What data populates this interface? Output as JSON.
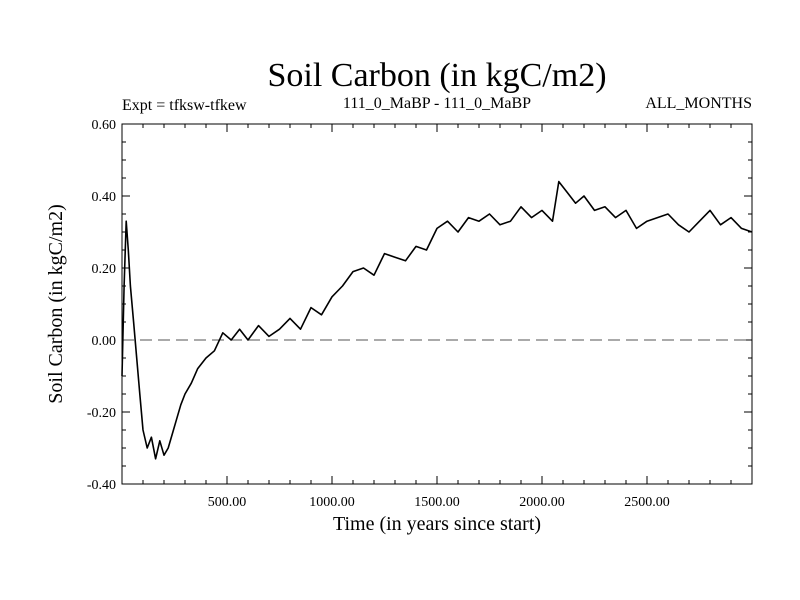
{
  "chart_data": {
    "type": "line",
    "title": "Soil Carbon (in kgC/m2)",
    "header_left": "Expt = tfksw-tfkew",
    "header_center": "111_0_MaBP - 111_0_MaBP",
    "header_right": "ALL_MONTHS",
    "xlabel": "Time (in years since start)",
    "ylabel": "Soil Carbon (in kgC/m2)",
    "xlim": [
      0,
      3000
    ],
    "ylim": [
      -0.4,
      0.6
    ],
    "x_ticks": [
      {
        "value": 500,
        "label": "500.00"
      },
      {
        "value": 1000,
        "label": "1000.00"
      },
      {
        "value": 1500,
        "label": "1500.00"
      },
      {
        "value": 2000,
        "label": "2000.00"
      },
      {
        "value": 2500,
        "label": "2500.00"
      }
    ],
    "y_ticks": [
      {
        "value": -0.4,
        "label": "-0.40"
      },
      {
        "value": -0.2,
        "label": "-0.20"
      },
      {
        "value": 0.0,
        "label": "0.00"
      },
      {
        "value": 0.2,
        "label": "0.20"
      },
      {
        "value": 0.4,
        "label": "0.40"
      },
      {
        "value": 0.6,
        "label": "0.60"
      }
    ],
    "reference_line": {
      "y": 0.0,
      "style": "dashed"
    },
    "series": [
      {
        "name": "soil_carbon",
        "x": [
          0,
          10,
          20,
          30,
          40,
          55,
          70,
          85,
          100,
          120,
          140,
          160,
          180,
          200,
          220,
          240,
          260,
          280,
          300,
          330,
          360,
          400,
          440,
          480,
          520,
          560,
          600,
          650,
          700,
          750,
          800,
          850,
          900,
          950,
          1000,
          1050,
          1100,
          1150,
          1200,
          1250,
          1300,
          1350,
          1400,
          1450,
          1500,
          1550,
          1600,
          1650,
          1700,
          1750,
          1800,
          1850,
          1900,
          1950,
          2000,
          2050,
          2080,
          2120,
          2160,
          2200,
          2250,
          2300,
          2350,
          2400,
          2450,
          2500,
          2550,
          2600,
          2650,
          2700,
          2750,
          2800,
          2850,
          2900,
          2950,
          3000
        ],
        "y": [
          -0.1,
          0.15,
          0.33,
          0.25,
          0.15,
          0.05,
          -0.05,
          -0.15,
          -0.25,
          -0.3,
          -0.27,
          -0.33,
          -0.28,
          -0.32,
          -0.3,
          -0.26,
          -0.22,
          -0.18,
          -0.15,
          -0.12,
          -0.08,
          -0.05,
          -0.03,
          0.02,
          0.0,
          0.03,
          0.0,
          0.04,
          0.01,
          0.03,
          0.06,
          0.03,
          0.09,
          0.07,
          0.12,
          0.15,
          0.19,
          0.2,
          0.18,
          0.24,
          0.23,
          0.22,
          0.26,
          0.25,
          0.31,
          0.33,
          0.3,
          0.34,
          0.33,
          0.35,
          0.32,
          0.33,
          0.37,
          0.34,
          0.36,
          0.33,
          0.44,
          0.41,
          0.38,
          0.4,
          0.36,
          0.37,
          0.34,
          0.36,
          0.31,
          0.33,
          0.34,
          0.35,
          0.32,
          0.3,
          0.33,
          0.36,
          0.32,
          0.34,
          0.31,
          0.3
        ]
      }
    ]
  }
}
